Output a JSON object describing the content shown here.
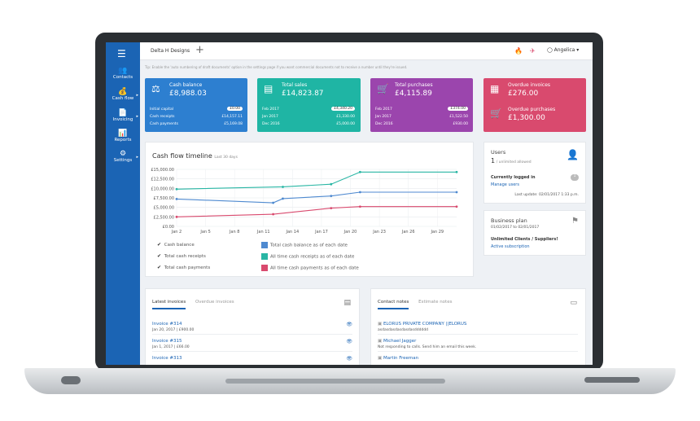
{
  "app": {
    "company": "Delta H Designs",
    "user": "Angelica ▾",
    "tip": "Tip: Enable the 'auto numbering of draft documents' option in the settings page if you want commercial documents not to receive a number until they're issued."
  },
  "sidebar": {
    "items": [
      {
        "label": "Contacts"
      },
      {
        "label": "Cash flow"
      },
      {
        "label": "Invoicing"
      },
      {
        "label": "Reports"
      },
      {
        "label": "Settings"
      }
    ]
  },
  "cards": {
    "cash": {
      "title": "Cash balance",
      "amount": "£8,988.03",
      "rows": [
        {
          "label": "Initial capital",
          "value": "£0.00"
        },
        {
          "label": "Cash receipts",
          "value": "£14,157.11"
        },
        {
          "label": "Cash payments",
          "value": "£5,169.08"
        }
      ],
      "color": "#2d7fd0"
    },
    "sales": {
      "title": "Total sales",
      "amount": "£14,823.87",
      "rows": [
        {
          "label": "Feb 2017",
          "value": "£4,340.20"
        },
        {
          "label": "Jan 2017",
          "value": "£1,330.00"
        },
        {
          "label": "Dec 2016",
          "value": "£5,000.00"
        }
      ],
      "color": "#1fb5a4"
    },
    "purchases": {
      "title": "Total purchases",
      "amount": "£4,115.89",
      "rows": [
        {
          "label": "Feb 2017",
          "value": "£374.00"
        },
        {
          "label": "Jan 2017",
          "value": "£1,522.50"
        },
        {
          "label": "Dec 2016",
          "value": "£930.00"
        }
      ],
      "color": "#9b45ad"
    },
    "overdue": {
      "inv_title": "Overdue invoices",
      "inv_amount": "£276.00",
      "pur_title": "Overdue purchases",
      "pur_amount": "£1,300.00",
      "color": "#d94a6e"
    }
  },
  "chart_data": {
    "type": "line",
    "title": "Cash flow timeline",
    "subtitle": "Last 30 days",
    "categories": [
      "Jan 2",
      "Jan 5",
      "Jan 8",
      "Jan 11",
      "Jan 14",
      "Jan 17",
      "Jan 20",
      "Jan 23",
      "Jan 26",
      "Jan 29"
    ],
    "y_ticks": [
      "£15,000.00",
      "£12,500.00",
      "£10,000.00",
      "£7,500.00",
      "£5,000.00",
      "£2,500.00",
      "£0.00"
    ],
    "ylim": [
      0,
      15000
    ],
    "x_start_day": 2,
    "x_end_day": 31,
    "series": [
      {
        "name": "Total cash balance as of each date",
        "color": "#4f8ad0",
        "points": [
          [
            2,
            7200
          ],
          [
            12,
            6200
          ],
          [
            13,
            7300
          ],
          [
            18,
            8000
          ],
          [
            21,
            9000
          ],
          [
            31,
            9000
          ]
        ]
      },
      {
        "name": "All time cash receipts as of each date",
        "color": "#29b6a4",
        "points": [
          [
            2,
            9800
          ],
          [
            13,
            10400
          ],
          [
            18,
            11100
          ],
          [
            21,
            14300
          ],
          [
            31,
            14300
          ]
        ]
      },
      {
        "name": "All time cash payments as of each date",
        "color": "#d94a6e",
        "points": [
          [
            2,
            2500
          ],
          [
            12,
            3200
          ],
          [
            18,
            4800
          ],
          [
            21,
            5200
          ],
          [
            31,
            5200
          ]
        ]
      }
    ],
    "checks": [
      "Cash balance",
      "Total cash receipts",
      "Total cash payments"
    ]
  },
  "users_panel": {
    "title": "Users",
    "count": "1",
    "allowed": "/ unlimited allowed",
    "logged_in": "Currently logged in",
    "logged_count": "1",
    "manage": "Manage users",
    "last_update": "Last update: 02/01/2017 1:33 p.m."
  },
  "plan_panel": {
    "title": "Business plan",
    "dates": "01/02/2017 to 02/01/2017",
    "plan": "Unlimited Clients / Suppliers!",
    "sub": "Active subscription"
  },
  "invoices_panel": {
    "tabs": [
      "Latest invoices",
      "Overdue invoices"
    ],
    "items": [
      {
        "title": "Invoice #314",
        "sub": "Jan 20, 2017 | £900.00"
      },
      {
        "title": "Invoice #315",
        "sub": "Jan 1, 2017 | £66.00"
      },
      {
        "title": "Invoice #313",
        "sub": ""
      }
    ]
  },
  "notes_panel": {
    "tabs": [
      "Contact notes",
      "Estimate notes"
    ],
    "items": [
      {
        "title": "ELORUS PRIVATE COMPANY ||ELORUS",
        "sub": "asdasdasdasdasdasdddddd"
      },
      {
        "title": "Michael Jagger",
        "sub": "Not responding to calls. Send him an email this week."
      },
      {
        "title": "Martin Freeman",
        "sub": ""
      }
    ]
  }
}
